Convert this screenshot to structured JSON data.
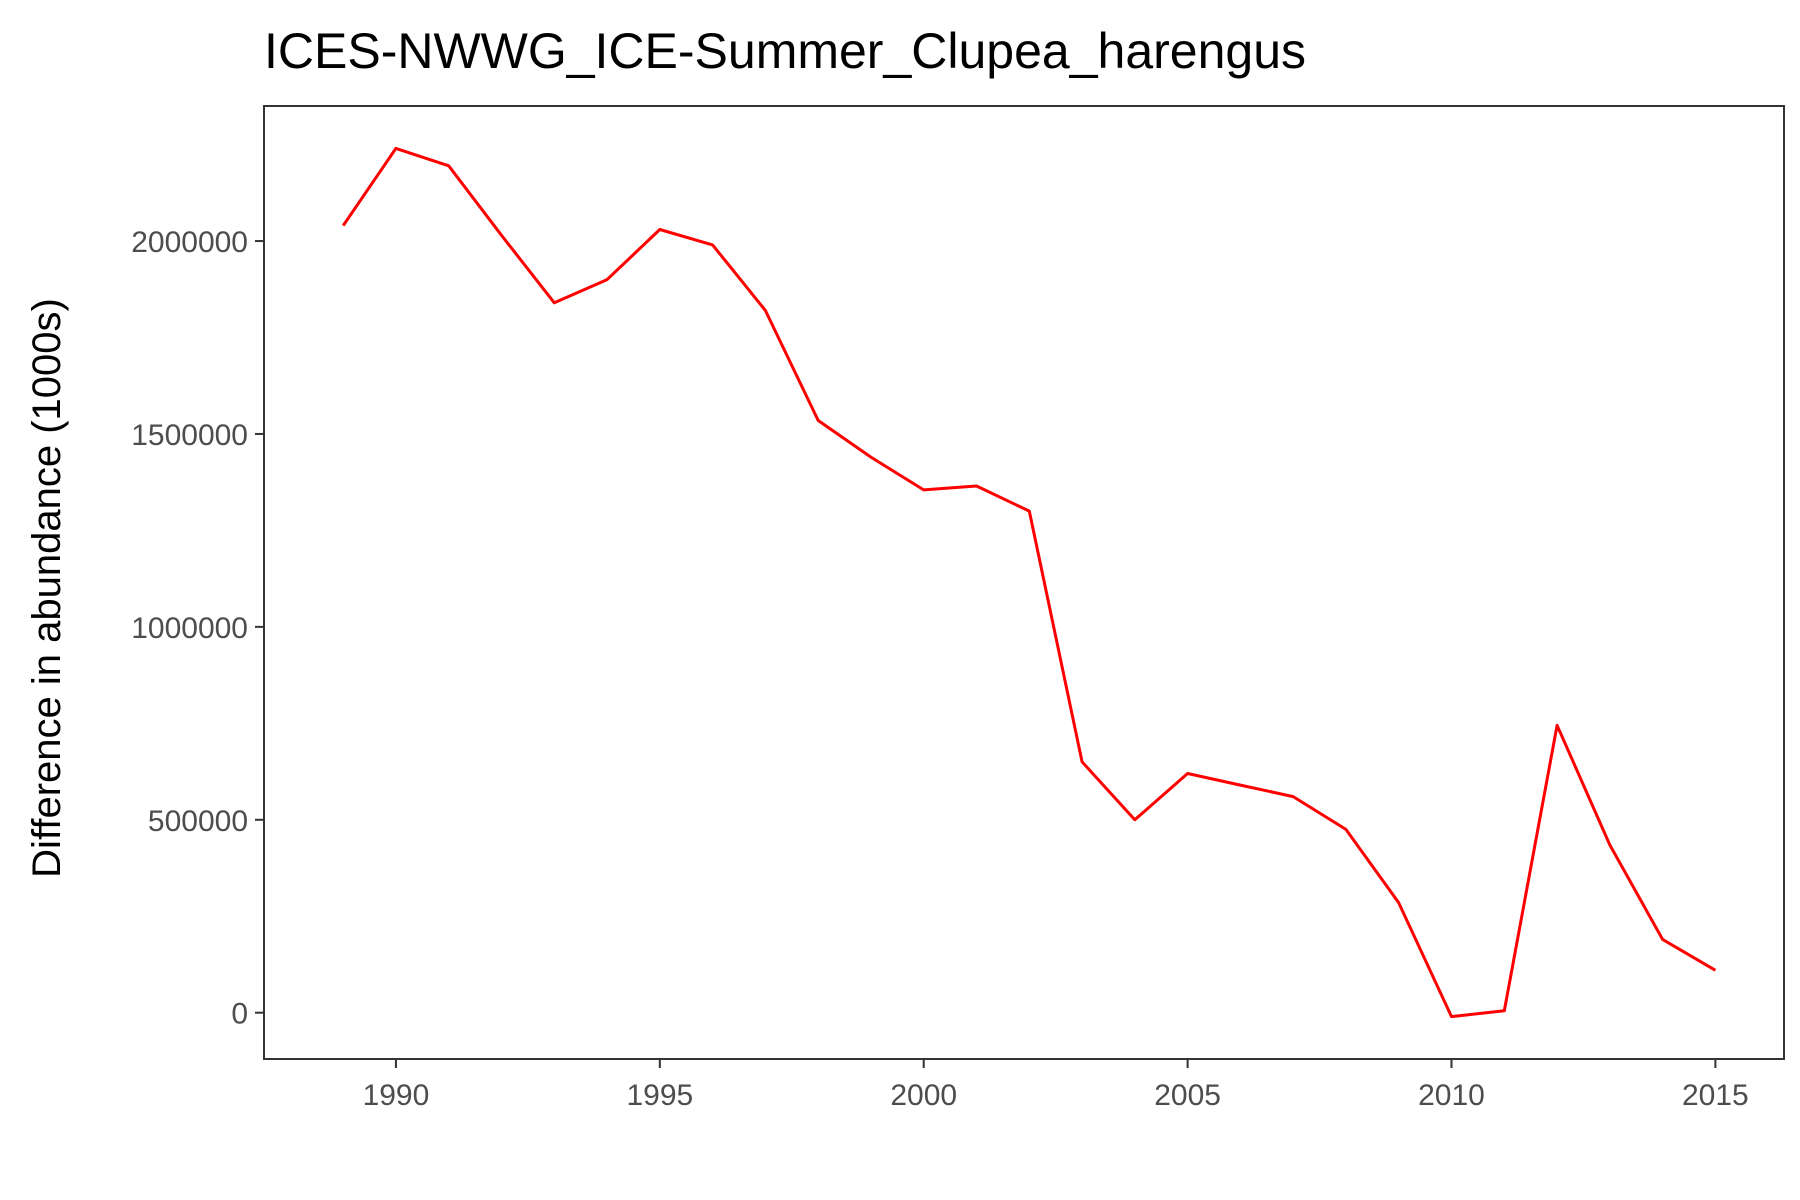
{
  "chart_data": {
    "type": "line",
    "title": "ICES-NWWG_ICE-Summer_Clupea_harengus",
    "xlabel": "",
    "ylabel": "Difference in abundance (1000s)",
    "xlim": [
      1987.5,
      2016.3
    ],
    "ylim": [
      -120000,
      2350000
    ],
    "x_ticks": [
      1990,
      1995,
      2000,
      2005,
      2010,
      2015
    ],
    "y_ticks": [
      0,
      500000,
      1000000,
      1500000,
      2000000
    ],
    "x_tick_labels": [
      "1990",
      "1995",
      "2000",
      "2005",
      "2010",
      "2015"
    ],
    "y_tick_labels": [
      "0",
      "500000",
      "1000000",
      "1500000",
      "2000000"
    ],
    "grid": false,
    "legend": "none",
    "line_color": "#ff0000",
    "x": [
      1989,
      1990,
      1991,
      1992,
      1993,
      1994,
      1995,
      1996,
      1997,
      1998,
      1999,
      2000,
      2001,
      2002,
      2003,
      2004,
      2005,
      2006,
      2007,
      2008,
      2009,
      2010,
      2011,
      2012,
      2013,
      2014,
      2015
    ],
    "series": [
      {
        "values": [
          2040000,
          2240000,
          2195000,
          2015000,
          1840000,
          1900000,
          2030000,
          1990000,
          1820000,
          1535000,
          1440000,
          1355000,
          1365000,
          1300000,
          650000,
          500000,
          620000,
          590000,
          560000,
          475000,
          285000,
          -10000,
          5000,
          745000,
          435000,
          190000,
          110000
        ]
      }
    ]
  }
}
